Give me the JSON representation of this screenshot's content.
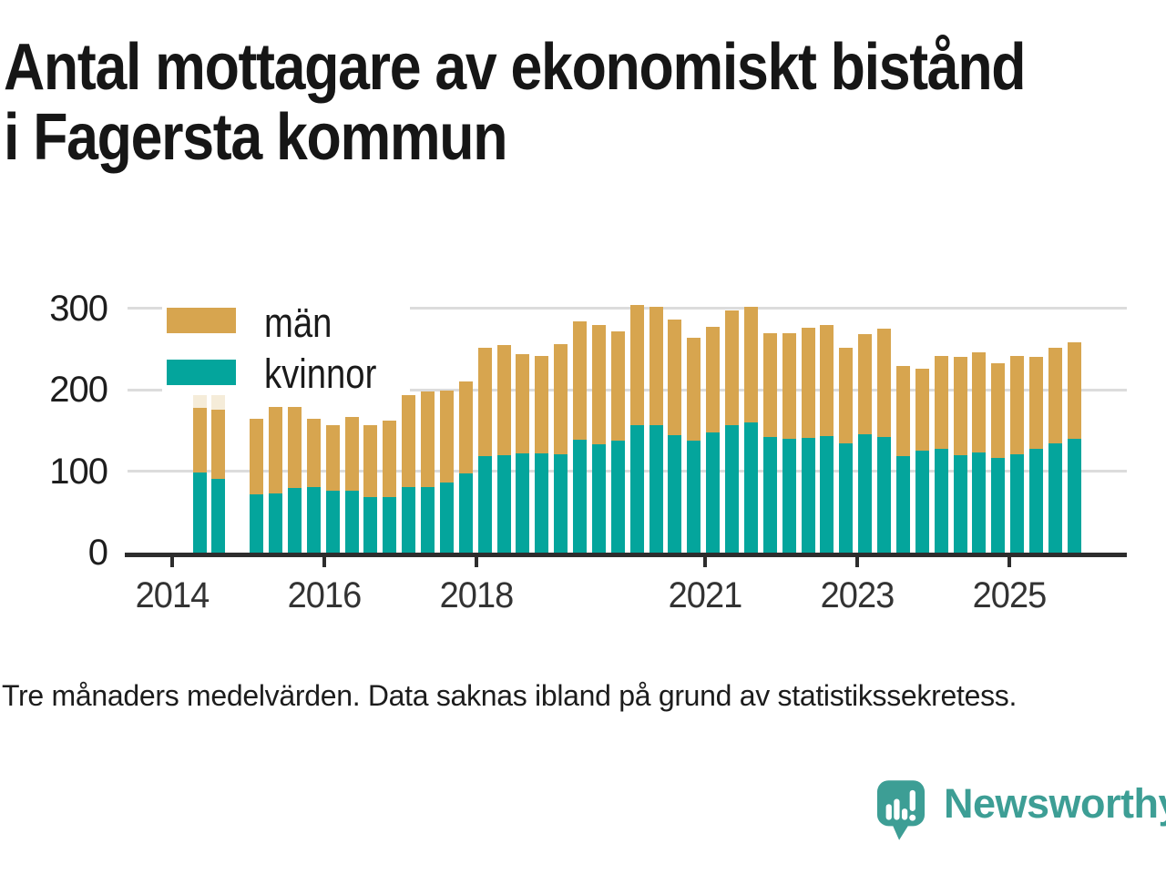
{
  "title": {
    "line1": "Antal mottagare av ekonomiskt bistånd",
    "line2": "i Fagersta kommun"
  },
  "footer": "Tre månaders medelvärden. Data saknas ibland på grund av statistikssekretess.",
  "branding": {
    "name": "Newsworthy",
    "logo_icon": "newsworthy-speech-bubble-bar-chart-icon",
    "color": "#3d9e95"
  },
  "chart_data": {
    "type": "bar",
    "stacked": true,
    "title": "Antal mottagare av ekonomiskt bistånd i Fagersta kommun",
    "xlabel": "",
    "ylabel": "",
    "ylim": [
      0,
      300
    ],
    "yticks": [
      0,
      100,
      200,
      300
    ],
    "grid": true,
    "legend_position": "top-left",
    "gridline_color": "#dcdcdc",
    "axis_color": "#2d2d2d",
    "faded_color": "#f5ecd9",
    "series": [
      {
        "name": "män",
        "color": "#d7a54f"
      },
      {
        "name": "kvinnor",
        "color": "#04a59c"
      }
    ],
    "xticks": [
      {
        "label": "2014",
        "slot": -1
      },
      {
        "label": "2016",
        "slot": 7
      },
      {
        "label": "2018",
        "slot": 15
      },
      {
        "label": "2021",
        "slot": 27
      },
      {
        "label": "2023",
        "slot": 35
      },
      {
        "label": "2025",
        "slot": 43
      }
    ],
    "bars": [
      {
        "quarter": "2014 Q2",
        "kvinnor": 98,
        "man": 80,
        "faded": 27
      },
      {
        "quarter": "2014 Q3",
        "kvinnor": 90,
        "man": 86,
        "faded": 22
      },
      {
        "quarter": "2014 Q4",
        "missing": true
      },
      {
        "quarter": "2015 Q1",
        "kvinnor": 71,
        "man": 93
      },
      {
        "quarter": "2015 Q2",
        "kvinnor": 73,
        "man": 106
      },
      {
        "quarter": "2015 Q3",
        "kvinnor": 79,
        "man": 100
      },
      {
        "quarter": "2015 Q4",
        "kvinnor": 80,
        "man": 84
      },
      {
        "quarter": "2016 Q1",
        "kvinnor": 76,
        "man": 81
      },
      {
        "quarter": "2016 Q2",
        "kvinnor": 76,
        "man": 90
      },
      {
        "quarter": "2016 Q3",
        "kvinnor": 68,
        "man": 88
      },
      {
        "quarter": "2016 Q4",
        "kvinnor": 68,
        "man": 94
      },
      {
        "quarter": "2017 Q1",
        "kvinnor": 80,
        "man": 113
      },
      {
        "quarter": "2017 Q2",
        "kvinnor": 81,
        "man": 117
      },
      {
        "quarter": "2017 Q3",
        "kvinnor": 86,
        "man": 113
      },
      {
        "quarter": "2017 Q4",
        "kvinnor": 97,
        "man": 113
      },
      {
        "quarter": "2018 Q1",
        "kvinnor": 119,
        "man": 132
      },
      {
        "quarter": "2018 Q2",
        "kvinnor": 120,
        "man": 135
      },
      {
        "quarter": "2018 Q3",
        "kvinnor": 122,
        "man": 122
      },
      {
        "quarter": "2018 Q4",
        "kvinnor": 122,
        "man": 119
      },
      {
        "quarter": "2019 Q1",
        "kvinnor": 121,
        "man": 135
      },
      {
        "quarter": "2019 Q2",
        "kvinnor": 139,
        "man": 145
      },
      {
        "quarter": "2019 Q3",
        "kvinnor": 133,
        "man": 146
      },
      {
        "quarter": "2019 Q4",
        "kvinnor": 138,
        "man": 134
      },
      {
        "quarter": "2020 Q1",
        "kvinnor": 157,
        "man": 147
      },
      {
        "quarter": "2020 Q2",
        "kvinnor": 157,
        "man": 145
      },
      {
        "quarter": "2020 Q3",
        "kvinnor": 144,
        "man": 142
      },
      {
        "quarter": "2020 Q4",
        "kvinnor": 138,
        "man": 126
      },
      {
        "quarter": "2021 Q1",
        "kvinnor": 148,
        "man": 129
      },
      {
        "quarter": "2021 Q2",
        "kvinnor": 156,
        "man": 141
      },
      {
        "quarter": "2021 Q3",
        "kvinnor": 160,
        "man": 142
      },
      {
        "quarter": "2021 Q4",
        "kvinnor": 142,
        "man": 127
      },
      {
        "quarter": "2022 Q1",
        "kvinnor": 140,
        "man": 129
      },
      {
        "quarter": "2022 Q2",
        "kvinnor": 141,
        "man": 135
      },
      {
        "quarter": "2022 Q3",
        "kvinnor": 143,
        "man": 136
      },
      {
        "quarter": "2022 Q4",
        "kvinnor": 134,
        "man": 118
      },
      {
        "quarter": "2023 Q1",
        "kvinnor": 145,
        "man": 123
      },
      {
        "quarter": "2023 Q2",
        "kvinnor": 142,
        "man": 133
      },
      {
        "quarter": "2023 Q3",
        "kvinnor": 118,
        "man": 111
      },
      {
        "quarter": "2023 Q4",
        "kvinnor": 125,
        "man": 101
      },
      {
        "quarter": "2024 Q1",
        "kvinnor": 127,
        "man": 114
      },
      {
        "quarter": "2024 Q2",
        "kvinnor": 120,
        "man": 120
      },
      {
        "quarter": "2024 Q3",
        "kvinnor": 123,
        "man": 123
      },
      {
        "quarter": "2024 Q4",
        "kvinnor": 116,
        "man": 117
      },
      {
        "quarter": "2025 Q1",
        "kvinnor": 121,
        "man": 120
      },
      {
        "quarter": "2025 Q2",
        "kvinnor": 127,
        "man": 113
      },
      {
        "quarter": "2025 Q3",
        "kvinnor": 134,
        "man": 117
      },
      {
        "quarter": "2025 Q4",
        "kvinnor": 140,
        "man": 118
      }
    ]
  }
}
